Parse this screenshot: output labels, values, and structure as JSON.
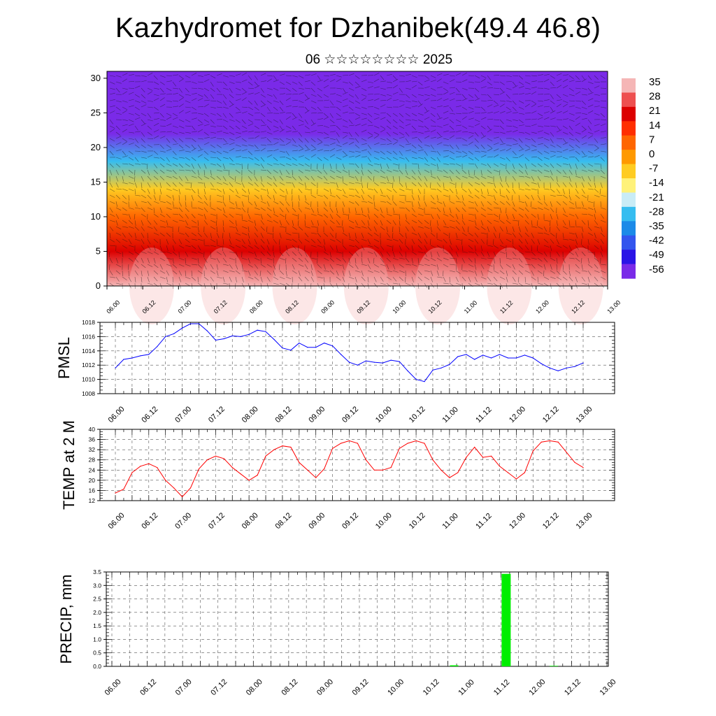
{
  "header": {
    "title": "Kazhydromet for Dzhanibek(49.4 46.8)",
    "subtitle": "06 ☆☆☆☆☆☆☆☆ 2025"
  },
  "time_labels": [
    "06.00",
    "06.12",
    "07.00",
    "07.12",
    "08.00",
    "08.12",
    "09.00",
    "09.12",
    "10.00",
    "10.12",
    "11.00",
    "11.12",
    "12.00",
    "12.12",
    "13.00"
  ],
  "colors": {
    "pmsl_line": "#0000ff",
    "temp_line": "#ff0000",
    "precip_bar": "#00ee00"
  },
  "chart_data": [
    {
      "type": "heatmap",
      "name": "temperature-wind cross-section",
      "ylim": [
        0,
        31
      ],
      "y_ticks": [
        "0",
        "5",
        "10",
        "15",
        "20",
        "25",
        "30"
      ],
      "colorbar": {
        "labels": [
          "35",
          "28",
          "21",
          "14",
          "7",
          "0",
          "-7",
          "-14",
          "-21",
          "-28",
          "-35",
          "-42",
          "-49",
          "-56"
        ],
        "colors": [
          "#f5b6b6",
          "#ee5050",
          "#dc0000",
          "#ff2e00",
          "#ff6600",
          "#ff9900",
          "#ffcc22",
          "#fff27a",
          "#c9ecf6",
          "#36bdf0",
          "#1c8ae8",
          "#3355ee",
          "#2a14e6",
          "#7a2ae8"
        ]
      },
      "levels": [
        {
          "h": 0,
          "temp": 32
        },
        {
          "h": 5,
          "temp": 24
        },
        {
          "h": 10,
          "temp": 8
        },
        {
          "h": 14,
          "temp": -8
        },
        {
          "h": 18,
          "temp": -30
        },
        {
          "h": 22,
          "temp": -58
        },
        {
          "h": 26,
          "temp": -60
        },
        {
          "h": 31,
          "temp": -58
        }
      ]
    },
    {
      "type": "line",
      "ylabel": "PMSL",
      "ylim": [
        1008,
        1018
      ],
      "y_ticks": [
        "1008",
        "1010",
        "1012",
        "1014",
        "1016",
        "1018"
      ],
      "values": [
        1011.6,
        1012.8,
        1013.0,
        1013.3,
        1013.5,
        1014.6,
        1016.0,
        1016.4,
        1017.2,
        1017.8,
        1017.8,
        1016.8,
        1015.5,
        1015.7,
        1016.1,
        1016.0,
        1016.3,
        1016.9,
        1016.7,
        1015.6,
        1014.4,
        1014.1,
        1015.1,
        1014.5,
        1014.5,
        1015.1,
        1014.7,
        1013.5,
        1012.4,
        1012.0,
        1012.6,
        1012.4,
        1012.3,
        1012.7,
        1012.5,
        1011.2,
        1010.0,
        1009.7,
        1011.3,
        1011.6,
        1012.1,
        1013.2,
        1013.5,
        1012.8,
        1013.4,
        1013.0,
        1013.5,
        1013.0,
        1013.0,
        1013.4,
        1013.0,
        1012.2,
        1011.6,
        1011.2,
        1011.6,
        1011.8,
        1012.3
      ]
    },
    {
      "type": "line",
      "ylabel": "TEMP at 2 M",
      "ylim": [
        12,
        40
      ],
      "y_ticks": [
        "12",
        "16",
        "20",
        "24",
        "28",
        "32",
        "36",
        "40"
      ],
      "values": [
        15,
        16.5,
        23,
        25.5,
        26.5,
        25,
        20,
        17,
        13.5,
        17,
        24.5,
        28,
        29.5,
        28.5,
        25,
        22.5,
        20,
        22,
        29.5,
        32,
        33.5,
        33,
        27,
        24,
        21,
        24.5,
        32.5,
        34.5,
        35.5,
        34.5,
        28,
        24,
        24,
        25,
        32.5,
        34.5,
        35.5,
        34.5,
        28,
        24,
        21,
        23,
        29,
        33,
        29,
        29.5,
        25.5,
        23,
        20.5,
        23,
        31.5,
        35,
        35.5,
        35,
        31,
        27,
        25
      ]
    },
    {
      "type": "bar",
      "ylabel": "PRECIP, mm",
      "ylim": [
        0,
        3.5
      ],
      "y_ticks": [
        "0.0",
        "0.5",
        "1.0",
        "1.5",
        "2.0",
        "2.5",
        "3.0",
        "3.5"
      ],
      "bars": [
        {
          "x": 9.68,
          "value": 0.04
        },
        {
          "x": 11.15,
          "value": 3.43
        },
        {
          "x": 12.5,
          "value": 0.02
        }
      ]
    }
  ]
}
